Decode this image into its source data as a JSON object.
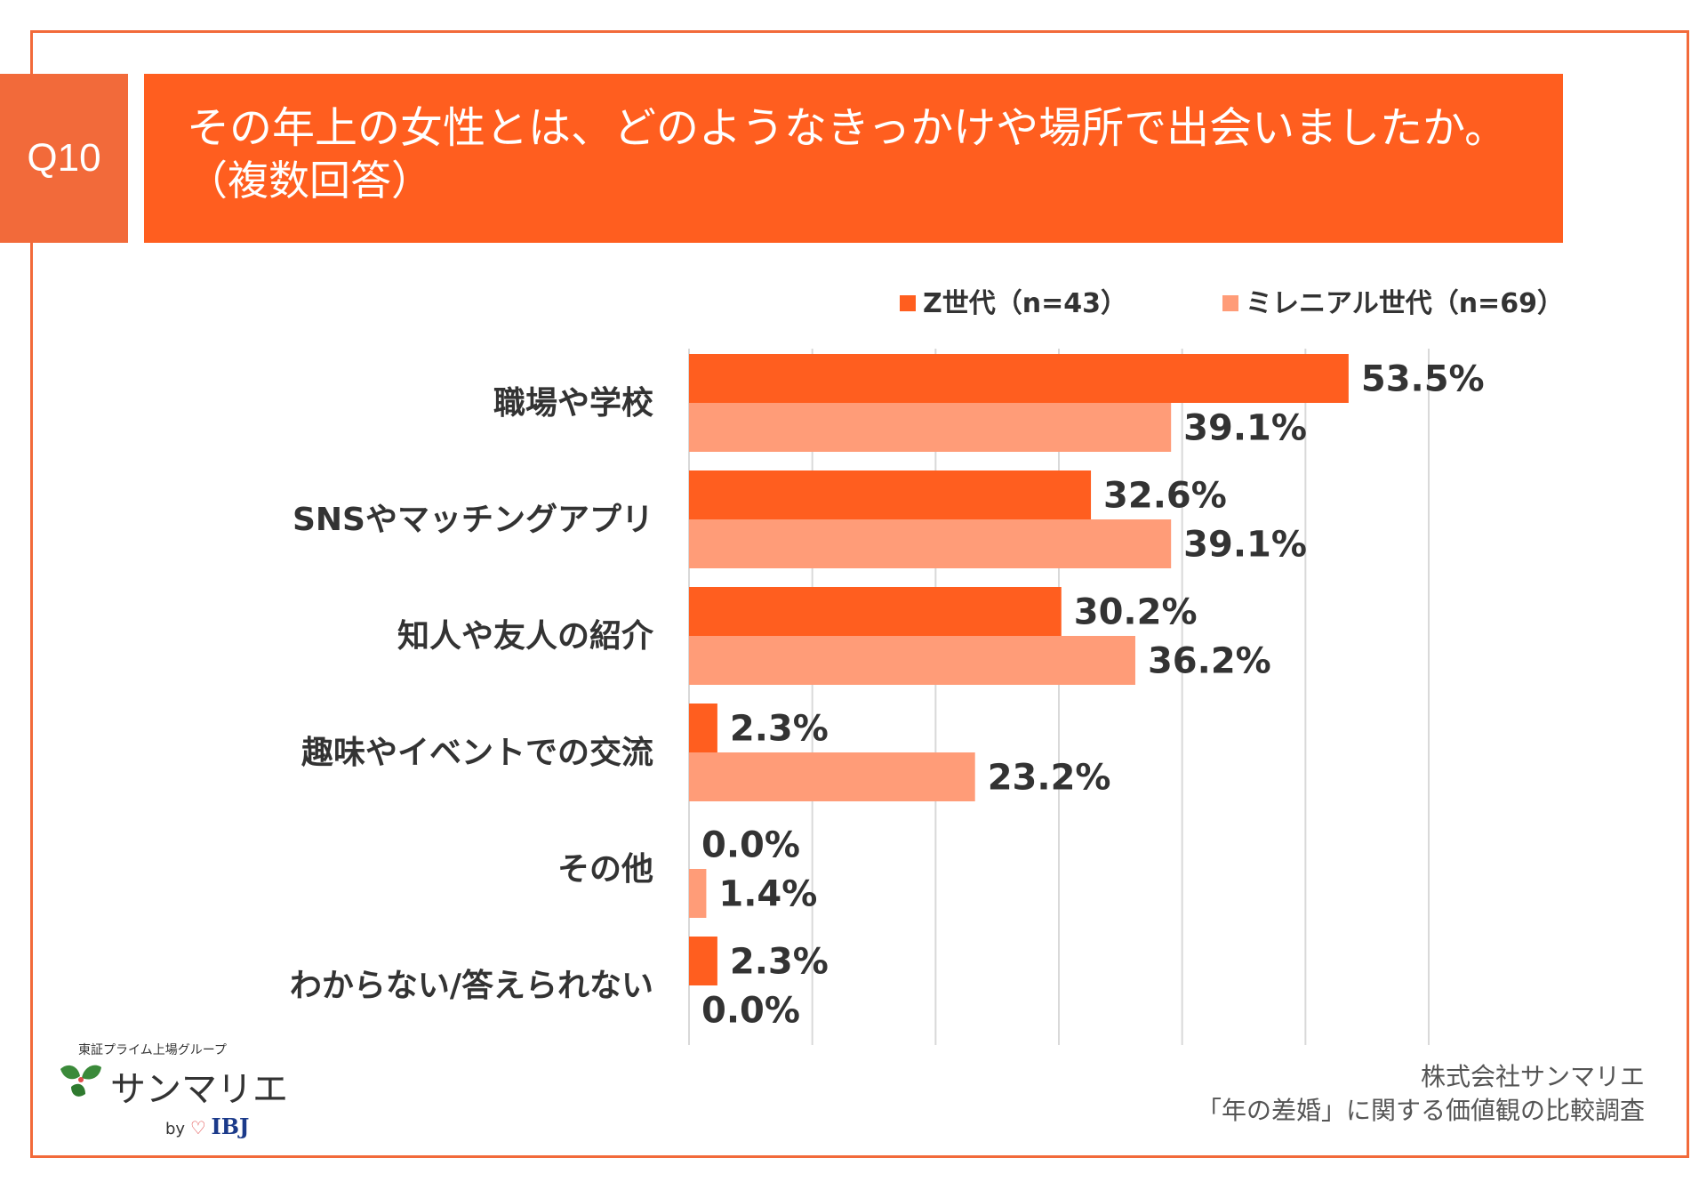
{
  "header": {
    "q_label": "Q10",
    "title_line1": "その年上の女性とは、どのようなきっかけや場所で出会いましたか。",
    "title_line2": "（複数回答）"
  },
  "colors": {
    "frame": "#f26a3a",
    "title_bg": "#ff5e1f",
    "series_z": "#ff5e1f",
    "series_m": "#ff9c78",
    "grid": "#d9d9d9"
  },
  "chart_data": {
    "type": "bar",
    "orientation": "horizontal",
    "categories": [
      "職場や学校",
      "SNSやマッチングアプリ",
      "知人や友人の紹介",
      "趣味やイベントでの交流",
      "その他",
      "わからない/答えられない"
    ],
    "series": [
      {
        "name": "Z世代（n=43）",
        "values": [
          53.5,
          32.6,
          30.2,
          2.3,
          0.0,
          2.3
        ],
        "labels": [
          "53.5%",
          "32.6%",
          "30.2%",
          "2.3%",
          "0.0%",
          "2.3%"
        ]
      },
      {
        "name": "ミレニアル世代（n=69）",
        "values": [
          39.1,
          39.1,
          36.2,
          23.2,
          1.4,
          0.0
        ],
        "labels": [
          "39.1%",
          "39.1%",
          "36.2%",
          "23.2%",
          "1.4%",
          "0.0%"
        ]
      }
    ],
    "xlim": [
      0,
      60
    ],
    "grid": true,
    "legend_position": "top-right"
  },
  "logo": {
    "small_text": "東証プライム上場グループ",
    "main_text": "サンマリエ",
    "by_text": "by",
    "ibj_text": "IBJ"
  },
  "source": {
    "line1": "株式会社サンマリエ",
    "line2": "「年の差婚」に関する価値観の比較調査"
  }
}
